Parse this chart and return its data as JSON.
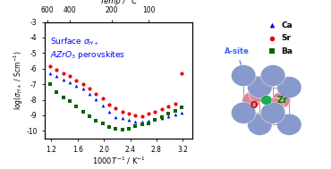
{
  "xlabel": "$1000T^{-1}$ / K$^{-1}$",
  "ylabel": "log($\\sigma_{H+}$ / Scm$^{-1}$)",
  "top_xlabel": "Temp / °C",
  "xlim": [
    1.1,
    3.35
  ],
  "ylim": [
    -10.5,
    -3.0
  ],
  "yticks": [
    -10,
    -9,
    -8,
    -7,
    -6,
    -5,
    -4,
    -3
  ],
  "xticks_bottom": [
    1.2,
    1.6,
    2.0,
    2.4,
    2.8,
    3.2
  ],
  "temp_C": [
    600,
    400,
    200,
    100
  ],
  "Sr_x": [
    1.18,
    1.28,
    1.38,
    1.48,
    1.58,
    1.68,
    1.78,
    1.88,
    1.98,
    2.08,
    2.18,
    2.28,
    2.38,
    2.48,
    2.58,
    2.68,
    2.78,
    2.88,
    2.98,
    3.08,
    3.18
  ],
  "Sr_y": [
    -5.85,
    -6.05,
    -6.3,
    -6.5,
    -6.75,
    -7.0,
    -7.3,
    -7.6,
    -7.9,
    -8.3,
    -8.55,
    -8.75,
    -8.9,
    -9.0,
    -9.05,
    -8.9,
    -8.75,
    -8.6,
    -8.45,
    -8.25,
    -6.3
  ],
  "Ca_x": [
    1.18,
    1.28,
    1.38,
    1.48,
    1.58,
    1.68,
    1.78,
    1.88,
    1.98,
    2.08,
    2.18,
    2.28,
    2.38,
    2.48,
    2.58,
    2.68,
    2.78,
    2.88,
    2.98,
    3.08,
    3.18
  ],
  "Ca_y": [
    -6.3,
    -6.5,
    -6.7,
    -6.9,
    -7.1,
    -7.3,
    -7.6,
    -7.95,
    -8.4,
    -8.8,
    -9.1,
    -9.2,
    -9.3,
    -9.4,
    -9.4,
    -9.35,
    -9.25,
    -9.15,
    -9.05,
    -8.95,
    -8.85
  ],
  "Ba_x": [
    1.18,
    1.28,
    1.38,
    1.48,
    1.58,
    1.68,
    1.78,
    1.88,
    1.98,
    2.08,
    2.18,
    2.28,
    2.38,
    2.48,
    2.58,
    2.68,
    2.78,
    2.88,
    2.98,
    3.08,
    3.18
  ],
  "Ba_y": [
    -7.0,
    -7.5,
    -7.85,
    -8.1,
    -8.45,
    -8.75,
    -9.05,
    -9.35,
    -9.55,
    -9.75,
    -9.85,
    -9.95,
    -9.85,
    -9.7,
    -9.6,
    -9.5,
    -9.3,
    -9.1,
    -8.9,
    -8.7,
    -8.5
  ],
  "Ca_color": "#0000ee",
  "Sr_color": "#ee0000",
  "Ba_color": "#006400",
  "Asite_color": "#8899cc",
  "O_color": "#dd8899",
  "Zr_color": "#22aa55",
  "bg_color": "#ffffff",
  "annotation_text_line1": "Surface $\\sigma_{H+}$",
  "annotation_text_line2": "$AZrO_3$ perovskites"
}
